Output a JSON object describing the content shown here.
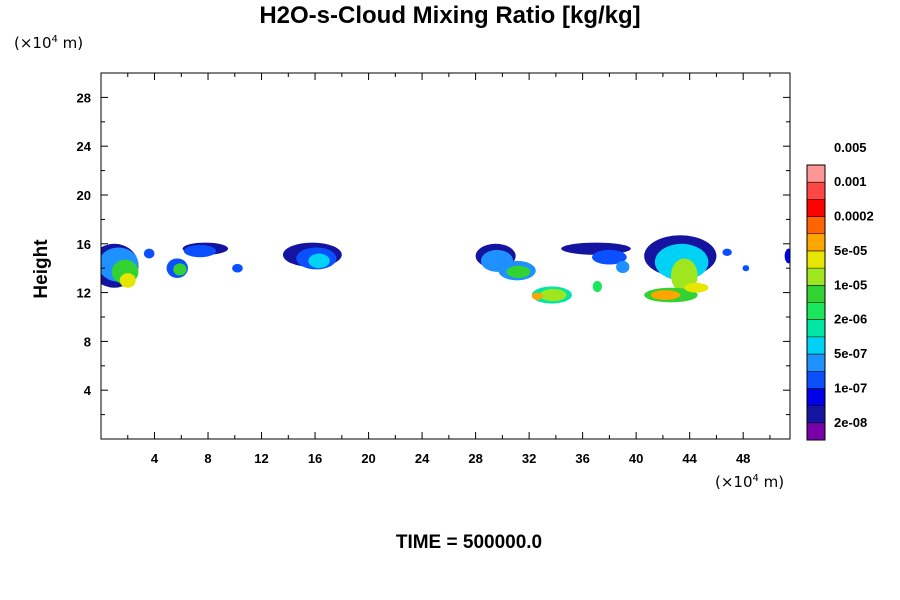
{
  "chart_data": {
    "type": "heatmap",
    "title": "H2O-s-Cloud Mixing Ratio [kg/kg]",
    "ylabel": "Height",
    "y_unit": "(×10",
    "x_unit": "(×10",
    "unit_exp": "4",
    "unit_tail": " m)",
    "footer": "TIME = 500000.0",
    "xlim": [
      0,
      51.5
    ],
    "ylim": [
      0,
      30
    ],
    "xticks": [
      4,
      8,
      12,
      16,
      20,
      24,
      28,
      32,
      36,
      40,
      44,
      48
    ],
    "yticks": [
      4,
      8,
      12,
      16,
      20,
      24,
      28
    ],
    "grid": false,
    "colorbar": {
      "colors": [
        "#7a00a8",
        "#1414a0",
        "#0000e6",
        "#0a50ff",
        "#1e90ff",
        "#00d2f5",
        "#00e6a5",
        "#19e65a",
        "#32d232",
        "#a0e61e",
        "#e6e600",
        "#ffa500",
        "#ff6400",
        "#ff0000",
        "#ff4646",
        "#ff9696"
      ],
      "labels": [
        "2e-08",
        "1e-07",
        "5e-07",
        "2e-06",
        "1e-05",
        "5e-05",
        "0.0002",
        "0.001",
        "0.005"
      ]
    },
    "cloud_patches": [
      {
        "x": 1.0,
        "y": 14.2,
        "rx": 1.8,
        "ry": 1.8,
        "level": 1
      },
      {
        "x": 1.3,
        "y": 14.3,
        "rx": 1.5,
        "ry": 1.4,
        "level": 4
      },
      {
        "x": 1.8,
        "y": 13.7,
        "rx": 1.0,
        "ry": 1.0,
        "level": 8
      },
      {
        "x": 2.0,
        "y": 13.0,
        "rx": 0.6,
        "ry": 0.6,
        "level": 10
      },
      {
        "x": 3.6,
        "y": 15.2,
        "rx": 0.4,
        "ry": 0.4,
        "level": 3
      },
      {
        "x": 5.7,
        "y": 14.0,
        "rx": 0.8,
        "ry": 0.8,
        "level": 3
      },
      {
        "x": 5.9,
        "y": 13.9,
        "rx": 0.5,
        "ry": 0.5,
        "level": 8
      },
      {
        "x": 7.8,
        "y": 15.6,
        "rx": 1.7,
        "ry": 0.5,
        "level": 1
      },
      {
        "x": 7.4,
        "y": 15.4,
        "rx": 1.2,
        "ry": 0.5,
        "level": 3
      },
      {
        "x": 10.2,
        "y": 14.0,
        "rx": 0.4,
        "ry": 0.35,
        "level": 3
      },
      {
        "x": 15.8,
        "y": 15.1,
        "rx": 2.2,
        "ry": 1.0,
        "level": 1
      },
      {
        "x": 16.1,
        "y": 14.8,
        "rx": 1.5,
        "ry": 0.9,
        "level": 3
      },
      {
        "x": 16.3,
        "y": 14.6,
        "rx": 0.8,
        "ry": 0.6,
        "level": 5
      },
      {
        "x": 29.5,
        "y": 15.0,
        "rx": 1.5,
        "ry": 1.0,
        "level": 1
      },
      {
        "x": 29.6,
        "y": 14.6,
        "rx": 1.2,
        "ry": 0.9,
        "level": 4
      },
      {
        "x": 31.1,
        "y": 13.8,
        "rx": 1.4,
        "ry": 0.8,
        "level": 4
      },
      {
        "x": 31.2,
        "y": 13.7,
        "rx": 0.9,
        "ry": 0.5,
        "level": 8
      },
      {
        "x": 33.7,
        "y": 11.8,
        "rx": 1.5,
        "ry": 0.7,
        "level": 6
      },
      {
        "x": 33.8,
        "y": 11.8,
        "rx": 1.0,
        "ry": 0.5,
        "level": 9
      },
      {
        "x": 32.6,
        "y": 11.7,
        "rx": 0.4,
        "ry": 0.3,
        "level": 11
      },
      {
        "x": 37.0,
        "y": 15.6,
        "rx": 2.6,
        "ry": 0.5,
        "level": 1
      },
      {
        "x": 38.0,
        "y": 14.9,
        "rx": 1.3,
        "ry": 0.6,
        "level": 3
      },
      {
        "x": 39.0,
        "y": 14.1,
        "rx": 0.5,
        "ry": 0.5,
        "level": 4
      },
      {
        "x": 37.1,
        "y": 12.5,
        "rx": 0.35,
        "ry": 0.45,
        "level": 7
      },
      {
        "x": 43.3,
        "y": 15.0,
        "rx": 2.7,
        "ry": 1.7,
        "level": 1
      },
      {
        "x": 43.4,
        "y": 14.5,
        "rx": 2.0,
        "ry": 1.5,
        "level": 5
      },
      {
        "x": 43.6,
        "y": 13.4,
        "rx": 1.0,
        "ry": 1.4,
        "level": 9
      },
      {
        "x": 42.6,
        "y": 11.8,
        "rx": 2.0,
        "ry": 0.6,
        "level": 8
      },
      {
        "x": 42.2,
        "y": 11.8,
        "rx": 1.1,
        "ry": 0.4,
        "level": 11
      },
      {
        "x": 44.5,
        "y": 12.4,
        "rx": 0.9,
        "ry": 0.4,
        "level": 10
      },
      {
        "x": 46.8,
        "y": 15.3,
        "rx": 0.35,
        "ry": 0.3,
        "level": 3
      },
      {
        "x": 48.2,
        "y": 14.0,
        "rx": 0.25,
        "ry": 0.25,
        "level": 3
      },
      {
        "x": 51.4,
        "y": 15.0,
        "rx": 0.3,
        "ry": 0.6,
        "level": 2
      }
    ]
  }
}
